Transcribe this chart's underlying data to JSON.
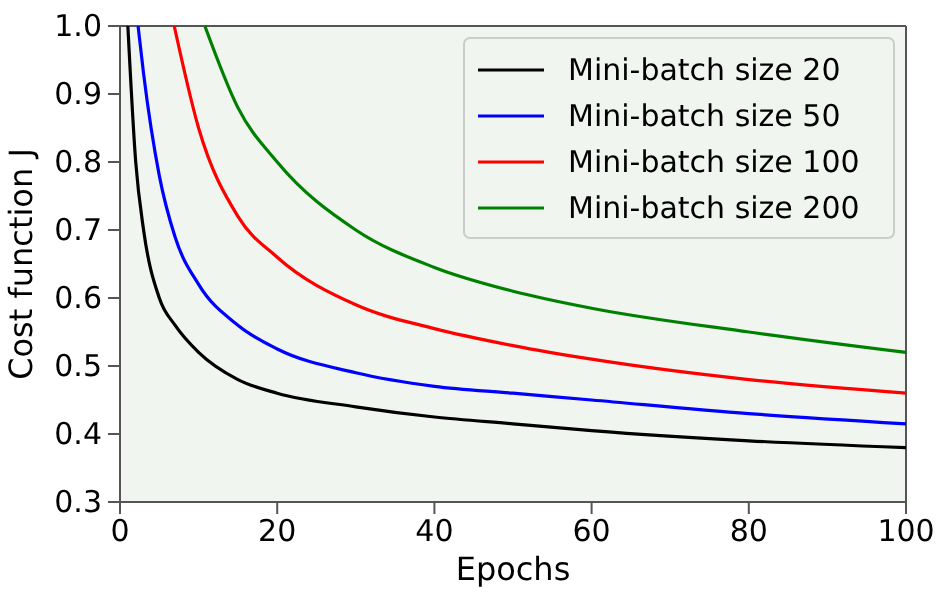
{
  "chart_data": {
    "type": "line",
    "xlabel": "Epochs",
    "ylabel": "Cost function J",
    "xlim": [
      0,
      100
    ],
    "ylim": [
      0.3,
      1.0
    ],
    "xticks": [
      0,
      20,
      40,
      60,
      80,
      100
    ],
    "yticks": [
      {
        "value": 0.3,
        "label": "0.3"
      },
      {
        "value": 0.4,
        "label": "0.4"
      },
      {
        "value": 0.5,
        "label": "0.5"
      },
      {
        "value": 0.6,
        "label": "0.6"
      },
      {
        "value": 0.7,
        "label": "0.7"
      },
      {
        "value": 0.8,
        "label": "0.8"
      },
      {
        "value": 0.9,
        "label": "0.9"
      },
      {
        "value": 1.0,
        "label": "1.0"
      }
    ],
    "grid": false,
    "legend": "top right",
    "series": [
      {
        "name": "Mini-batch size 20",
        "color": "#000000",
        "x": [
          1,
          2,
          3,
          5,
          7,
          10,
          15,
          20,
          30,
          40,
          50,
          60,
          80,
          100
        ],
        "values": [
          1.0,
          0.8,
          0.7,
          0.6,
          0.56,
          0.52,
          0.48,
          0.46,
          0.44,
          0.425,
          0.415,
          0.405,
          0.39,
          0.38
        ]
      },
      {
        "name": "Mini-batch size 50",
        "color": "#0000ff",
        "x": [
          2.3,
          3,
          5,
          7,
          10,
          15,
          20,
          30,
          40,
          50,
          60,
          80,
          100
        ],
        "values": [
          1.0,
          0.93,
          0.78,
          0.69,
          0.62,
          0.56,
          0.525,
          0.49,
          0.47,
          0.46,
          0.45,
          0.43,
          0.415
        ]
      },
      {
        "name": "Mini-batch size 100",
        "color": "#ff0000",
        "x": [
          6.9,
          10,
          15,
          20,
          30,
          40,
          50,
          60,
          80,
          100
        ],
        "values": [
          1.0,
          0.85,
          0.72,
          0.66,
          0.59,
          0.555,
          0.53,
          0.51,
          0.48,
          0.46
        ]
      },
      {
        "name": "Mini-batch size 200",
        "color": "#008000",
        "x": [
          10.8,
          15,
          20,
          30,
          40,
          50,
          60,
          80,
          100
        ],
        "values": [
          1.0,
          0.88,
          0.8,
          0.7,
          0.645,
          0.61,
          0.585,
          0.55,
          0.52
        ]
      }
    ]
  }
}
